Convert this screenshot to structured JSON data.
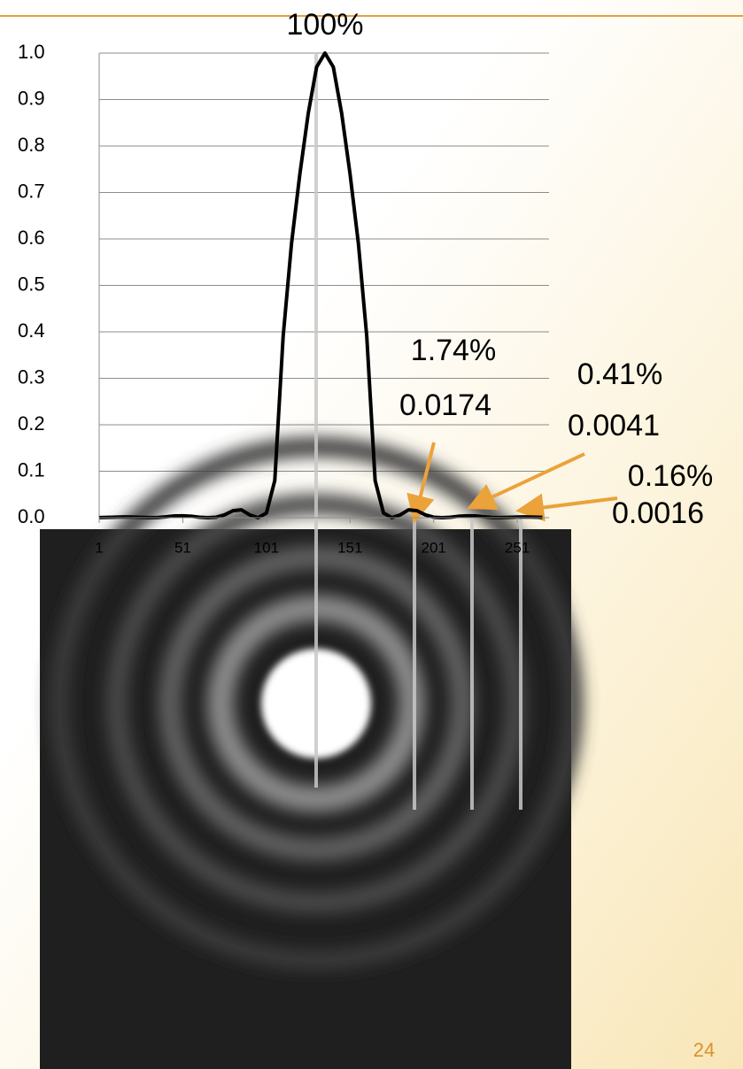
{
  "chart_data": {
    "type": "line",
    "x": [
      1,
      6,
      11,
      16,
      21,
      26,
      31,
      36,
      41,
      46,
      51,
      56,
      61,
      66,
      71,
      76,
      81,
      86,
      91,
      96,
      101,
      106,
      111,
      116,
      121,
      126,
      131,
      136,
      141,
      146,
      151,
      156,
      161,
      166,
      171,
      176,
      181,
      186,
      191,
      196,
      201,
      206,
      211,
      216,
      221,
      226,
      231,
      236,
      241,
      246,
      251,
      256,
      261,
      266
    ],
    "values": [
      0.0002,
      0.0006,
      0.0012,
      0.0016,
      0.0015,
      0.0008,
      0.0002,
      0.0005,
      0.002,
      0.0038,
      0.004,
      0.003,
      0.001,
      0,
      0.001,
      0.006,
      0.015,
      0.017,
      0.006,
      0,
      0.01,
      0.08,
      0.39,
      0.59,
      0.74,
      0.87,
      0.97,
      1.0,
      0.97,
      0.87,
      0.74,
      0.59,
      0.39,
      0.08,
      0.01,
      0,
      0.006,
      0.017,
      0.015,
      0.006,
      0.001,
      0,
      0.001,
      0.003,
      0.004,
      0.0038,
      0.002,
      0.0005,
      0.0002,
      0.0008,
      0.0015,
      0.0016,
      0.0012,
      0.0006
    ],
    "color": "#000000",
    "xlim": [
      1,
      270
    ],
    "xticks": [
      1,
      51,
      101,
      151,
      201,
      251
    ],
    "ylim": [
      0,
      1
    ],
    "yticks": [
      {
        "value": 0,
        "label": "0.0"
      },
      0.1,
      0.2,
      0.3,
      0.4,
      0.5,
      0.6,
      0.7,
      0.8,
      0.9,
      {
        "value": 1,
        "label": "1.0"
      }
    ],
    "grid": true,
    "annotations": [
      "100%",
      "1.74%",
      "0.0174",
      "0.41%",
      "0.0041",
      "0.16%",
      "0.0016"
    ]
  },
  "page_number": "24"
}
